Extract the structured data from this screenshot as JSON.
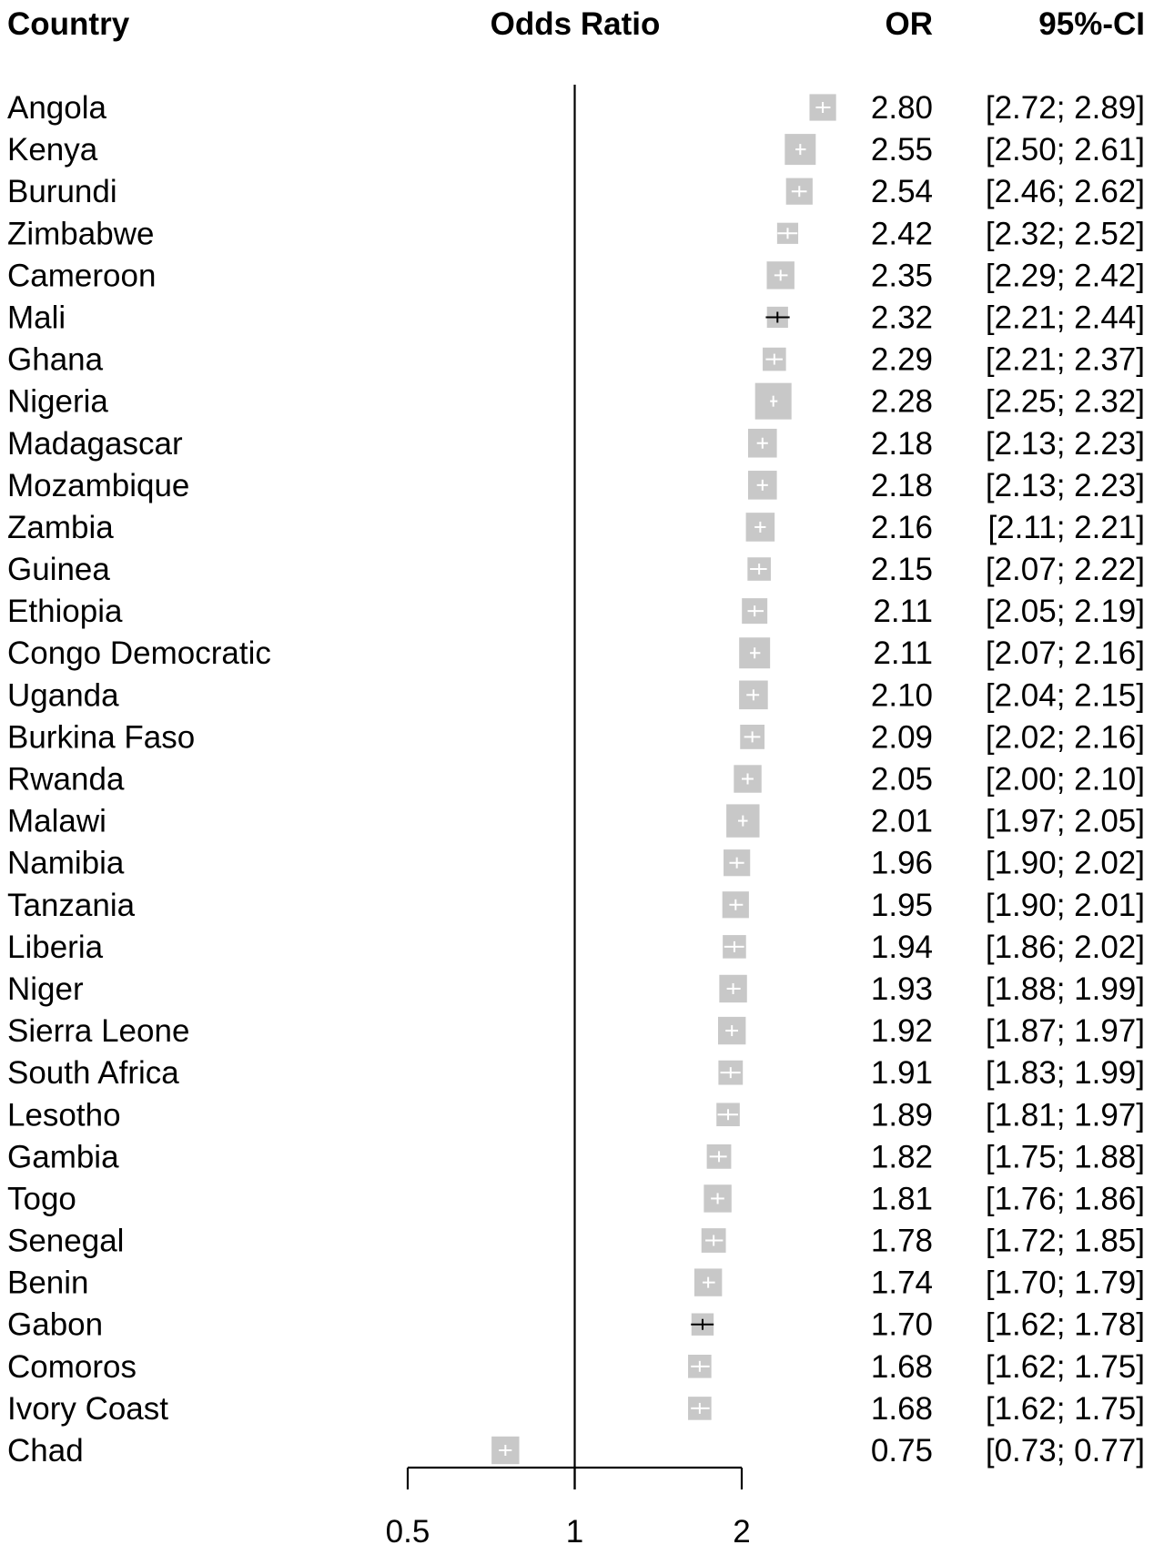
{
  "chart_data": {
    "type": "forest",
    "headers": {
      "country": "Country",
      "odds_ratio": "Odds Ratio",
      "or": "OR",
      "ci": "95%-CI"
    },
    "x_scale": "log",
    "xlim": [
      0.5,
      2.0
    ],
    "reference_line": 1,
    "ticks": [
      {
        "value": 0.5,
        "label": "0.5"
      },
      {
        "value": 1,
        "label": "1"
      },
      {
        "value": 2,
        "label": "2"
      }
    ],
    "rows": [
      {
        "country": "Angola",
        "or": 2.8,
        "lower": 2.72,
        "upper": 2.89,
        "or_text": "2.80",
        "ci_text": "[2.72; 2.89]",
        "weight": 0.55
      },
      {
        "country": "Kenya",
        "or": 2.55,
        "lower": 2.5,
        "upper": 2.61,
        "or_text": "2.55",
        "ci_text": "[2.50; 2.61]",
        "weight": 0.75
      },
      {
        "country": "Burundi",
        "or": 2.54,
        "lower": 2.46,
        "upper": 2.62,
        "or_text": "2.54",
        "ci_text": "[2.46; 2.62]",
        "weight": 0.55
      },
      {
        "country": "Zimbabwe",
        "or": 2.42,
        "lower": 2.32,
        "upper": 2.52,
        "or_text": "2.42",
        "ci_text": "[2.32; 2.52]",
        "weight": 0.3
      },
      {
        "country": "Cameroon",
        "or": 2.35,
        "lower": 2.29,
        "upper": 2.42,
        "or_text": "2.35",
        "ci_text": "[2.29; 2.42]",
        "weight": 0.6
      },
      {
        "country": "Mali",
        "or": 2.32,
        "lower": 2.21,
        "upper": 2.44,
        "or_text": "2.32",
        "ci_text": "[2.21; 2.44]",
        "weight": 0.3
      },
      {
        "country": "Ghana",
        "or": 2.29,
        "lower": 2.21,
        "upper": 2.37,
        "or_text": "2.29",
        "ci_text": "[2.21; 2.37]",
        "weight": 0.4
      },
      {
        "country": "Nigeria",
        "or": 2.28,
        "lower": 2.25,
        "upper": 2.32,
        "or_text": "2.28",
        "ci_text": "[2.25; 2.32]",
        "weight": 1.0
      },
      {
        "country": "Madagascar",
        "or": 2.18,
        "lower": 2.13,
        "upper": 2.23,
        "or_text": "2.18",
        "ci_text": "[2.13; 2.23]",
        "weight": 0.65
      },
      {
        "country": "Mozambique",
        "or": 2.18,
        "lower": 2.13,
        "upper": 2.23,
        "or_text": "2.18",
        "ci_text": "[2.13; 2.23]",
        "weight": 0.65
      },
      {
        "country": "Zambia",
        "or": 2.16,
        "lower": 2.11,
        "upper": 2.21,
        "or_text": "2.16",
        "ci_text": "[2.11; 2.21]",
        "weight": 0.65
      },
      {
        "country": "Guinea",
        "or": 2.15,
        "lower": 2.07,
        "upper": 2.22,
        "or_text": "2.15",
        "ci_text": "[2.07; 2.22]",
        "weight": 0.4
      },
      {
        "country": "Ethiopia",
        "or": 2.11,
        "lower": 2.05,
        "upper": 2.19,
        "or_text": "2.11",
        "ci_text": "[2.05; 2.19]",
        "weight": 0.5
      },
      {
        "country": "Congo Democratic",
        "or": 2.11,
        "lower": 2.07,
        "upper": 2.16,
        "or_text": "2.11",
        "ci_text": "[2.07; 2.16]",
        "weight": 0.75
      },
      {
        "country": "Uganda",
        "or": 2.1,
        "lower": 2.04,
        "upper": 2.15,
        "or_text": "2.10",
        "ci_text": "[2.04; 2.15]",
        "weight": 0.65
      },
      {
        "country": "Burkina Faso",
        "or": 2.09,
        "lower": 2.02,
        "upper": 2.16,
        "or_text": "2.09",
        "ci_text": "[2.02; 2.16]",
        "weight": 0.45
      },
      {
        "country": "Rwanda",
        "or": 2.05,
        "lower": 2.0,
        "upper": 2.1,
        "or_text": "2.05",
        "ci_text": "[2.00; 2.10]",
        "weight": 0.6
      },
      {
        "country": "Malawi",
        "or": 2.01,
        "lower": 1.97,
        "upper": 2.05,
        "or_text": "2.01",
        "ci_text": "[1.97; 2.05]",
        "weight": 0.85
      },
      {
        "country": "Namibia",
        "or": 1.96,
        "lower": 1.9,
        "upper": 2.02,
        "or_text": "1.96",
        "ci_text": "[1.90; 2.02]",
        "weight": 0.55
      },
      {
        "country": "Tanzania",
        "or": 1.95,
        "lower": 1.9,
        "upper": 2.01,
        "or_text": "1.95",
        "ci_text": "[1.90; 2.01]",
        "weight": 0.55
      },
      {
        "country": "Liberia",
        "or": 1.94,
        "lower": 1.86,
        "upper": 2.02,
        "or_text": "1.94",
        "ci_text": "[1.86; 2.02]",
        "weight": 0.4
      },
      {
        "country": "Niger",
        "or": 1.93,
        "lower": 1.88,
        "upper": 1.99,
        "or_text": "1.93",
        "ci_text": "[1.88; 1.99]",
        "weight": 0.6
      },
      {
        "country": "Sierra Leone",
        "or": 1.92,
        "lower": 1.87,
        "upper": 1.97,
        "or_text": "1.92",
        "ci_text": "[1.87; 1.97]",
        "weight": 0.6
      },
      {
        "country": "South Africa",
        "or": 1.91,
        "lower": 1.83,
        "upper": 1.99,
        "or_text": "1.91",
        "ci_text": "[1.83; 1.99]",
        "weight": 0.45
      },
      {
        "country": "Lesotho",
        "or": 1.89,
        "lower": 1.81,
        "upper": 1.97,
        "or_text": "1.89",
        "ci_text": "[1.81; 1.97]",
        "weight": 0.4
      },
      {
        "country": "Gambia",
        "or": 1.82,
        "lower": 1.75,
        "upper": 1.88,
        "or_text": "1.82",
        "ci_text": "[1.75; 1.88]",
        "weight": 0.45
      },
      {
        "country": "Togo",
        "or": 1.81,
        "lower": 1.76,
        "upper": 1.86,
        "or_text": "1.81",
        "ci_text": "[1.76; 1.86]",
        "weight": 0.6
      },
      {
        "country": "Senegal",
        "or": 1.78,
        "lower": 1.72,
        "upper": 1.85,
        "or_text": "1.78",
        "ci_text": "[1.72; 1.85]",
        "weight": 0.45
      },
      {
        "country": "Benin",
        "or": 1.74,
        "lower": 1.7,
        "upper": 1.79,
        "or_text": "1.74",
        "ci_text": "[1.70; 1.79]",
        "weight": 0.6
      },
      {
        "country": "Gabon",
        "or": 1.7,
        "lower": 1.62,
        "upper": 1.78,
        "or_text": "1.70",
        "ci_text": "[1.62; 1.78]",
        "weight": 0.35
      },
      {
        "country": "Comoros",
        "or": 1.68,
        "lower": 1.62,
        "upper": 1.75,
        "or_text": "1.68",
        "ci_text": "[1.62; 1.75]",
        "weight": 0.4
      },
      {
        "country": "Ivory Coast",
        "or": 1.68,
        "lower": 1.62,
        "upper": 1.75,
        "or_text": "1.68",
        "ci_text": "[1.62; 1.75]",
        "weight": 0.4
      },
      {
        "country": "Chad",
        "or": 0.75,
        "lower": 0.73,
        "upper": 0.77,
        "or_text": "0.75",
        "ci_text": "[0.73; 0.77]",
        "weight": 0.6
      }
    ],
    "colors": {
      "box": "#c8c8c8",
      "ci_line": "#000000",
      "inner_tick": "#ffffff"
    }
  }
}
